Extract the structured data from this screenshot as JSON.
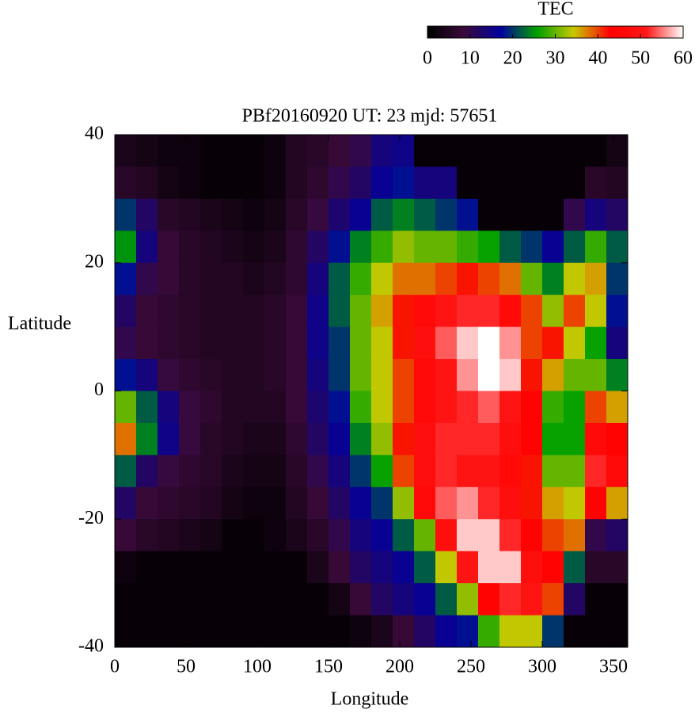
{
  "chart_data": {
    "type": "heatmap",
    "title": "PBf20160920  UT: 23  mjd: 57651",
    "xlabel": "Longitude",
    "ylabel": "Latitude",
    "colorbar_label": "TEC",
    "xlim": [
      0,
      360
    ],
    "xticks": [
      0,
      50,
      100,
      150,
      200,
      250,
      300,
      350
    ],
    "ylim": [
      -40,
      40
    ],
    "yticks": [
      -40,
      -20,
      0,
      20,
      40
    ],
    "zlim": [
      0,
      60
    ],
    "zticks": [
      0,
      10,
      20,
      30,
      40,
      50,
      60
    ],
    "colors": [
      "#000000",
      "#3a0a3a",
      "#0000a0",
      "#00a000",
      "#c8c800",
      "#ff0000",
      "#ff1818",
      "#ffffff"
    ],
    "x": [
      7.5,
      22.5,
      37.5,
      52.5,
      67.5,
      82.5,
      97.5,
      112.5,
      127.5,
      142.5,
      157.5,
      172.5,
      187.5,
      202.5,
      217.5,
      232.5,
      247.5,
      262.5,
      277.5,
      292.5,
      307.5,
      322.5,
      337.5,
      352.5
    ],
    "y": [
      37.5,
      32.5,
      27.5,
      22.5,
      17.5,
      12.5,
      7.5,
      2.5,
      -2.5,
      -7.5,
      -12.5,
      -17.5,
      -22.5,
      -27.5,
      -32.5,
      -37.5
    ],
    "values": [
      [
        4,
        3,
        2,
        2,
        1,
        1,
        1,
        2,
        5,
        6,
        8,
        10,
        14,
        15,
        1,
        1,
        1,
        1,
        1,
        1,
        1,
        1,
        1,
        3
      ],
      [
        6,
        5,
        3,
        2,
        1,
        1,
        1,
        2,
        5,
        7,
        10,
        12,
        16,
        18,
        14,
        14,
        1,
        1,
        1,
        1,
        1,
        1,
        6,
        5
      ],
      [
        20,
        12,
        6,
        5,
        4,
        3,
        2,
        3,
        6,
        9,
        13,
        16,
        22,
        24,
        22,
        20,
        18,
        1,
        1,
        1,
        1,
        10,
        14,
        12
      ],
      [
        25,
        14,
        8,
        6,
        5,
        4,
        3,
        4,
        7,
        12,
        18,
        24,
        28,
        32,
        30,
        30,
        28,
        26,
        22,
        20,
        16,
        22,
        28,
        22
      ],
      [
        18,
        10,
        8,
        6,
        5,
        5,
        4,
        5,
        7,
        14,
        22,
        28,
        34,
        38,
        38,
        40,
        42,
        40,
        38,
        30,
        24,
        34,
        36,
        20
      ],
      [
        12,
        8,
        7,
        6,
        5,
        5,
        5,
        6,
        8,
        15,
        22,
        30,
        36,
        42,
        46,
        50,
        52,
        52,
        46,
        40,
        32,
        40,
        34,
        18
      ],
      [
        10,
        8,
        7,
        6,
        5,
        5,
        5,
        6,
        8,
        15,
        20,
        30,
        34,
        42,
        48,
        54,
        58,
        60,
        56,
        40,
        42,
        34,
        26,
        14
      ],
      [
        18,
        14,
        9,
        7,
        6,
        5,
        5,
        6,
        8,
        14,
        20,
        30,
        34,
        40,
        46,
        50,
        56,
        60,
        58,
        42,
        36,
        30,
        30,
        24
      ],
      [
        30,
        22,
        14,
        9,
        7,
        5,
        5,
        5,
        8,
        13,
        18,
        28,
        34,
        40,
        46,
        50,
        52,
        54,
        50,
        44,
        28,
        26,
        40,
        36
      ],
      [
        38,
        24,
        15,
        9,
        6,
        5,
        4,
        4,
        7,
        12,
        16,
        24,
        32,
        42,
        48,
        52,
        52,
        52,
        48,
        44,
        26,
        26,
        46,
        44
      ],
      [
        22,
        12,
        9,
        7,
        6,
        4,
        3,
        3,
        6,
        10,
        14,
        20,
        26,
        40,
        48,
        52,
        50,
        50,
        46,
        42,
        30,
        30,
        52,
        46
      ],
      [
        12,
        8,
        7,
        6,
        5,
        3,
        2,
        2,
        5,
        8,
        12,
        16,
        20,
        32,
        46,
        54,
        56,
        52,
        48,
        42,
        36,
        34,
        44,
        36
      ],
      [
        8,
        6,
        5,
        4,
        3,
        1,
        1,
        2,
        4,
        6,
        10,
        14,
        16,
        22,
        30,
        48,
        58,
        58,
        52,
        44,
        40,
        38,
        10,
        12
      ],
      [
        2,
        1,
        1,
        1,
        1,
        1,
        1,
        1,
        1,
        4,
        8,
        12,
        14,
        16,
        22,
        34,
        50,
        58,
        58,
        48,
        44,
        22,
        6,
        6
      ],
      [
        1,
        1,
        1,
        1,
        1,
        1,
        1,
        1,
        1,
        1,
        3,
        8,
        12,
        14,
        16,
        22,
        32,
        44,
        52,
        50,
        40,
        12,
        1,
        1
      ],
      [
        1,
        1,
        1,
        1,
        1,
        1,
        1,
        1,
        1,
        1,
        1,
        2,
        4,
        8,
        12,
        16,
        18,
        28,
        34,
        34,
        20,
        1,
        1,
        1
      ]
    ]
  }
}
